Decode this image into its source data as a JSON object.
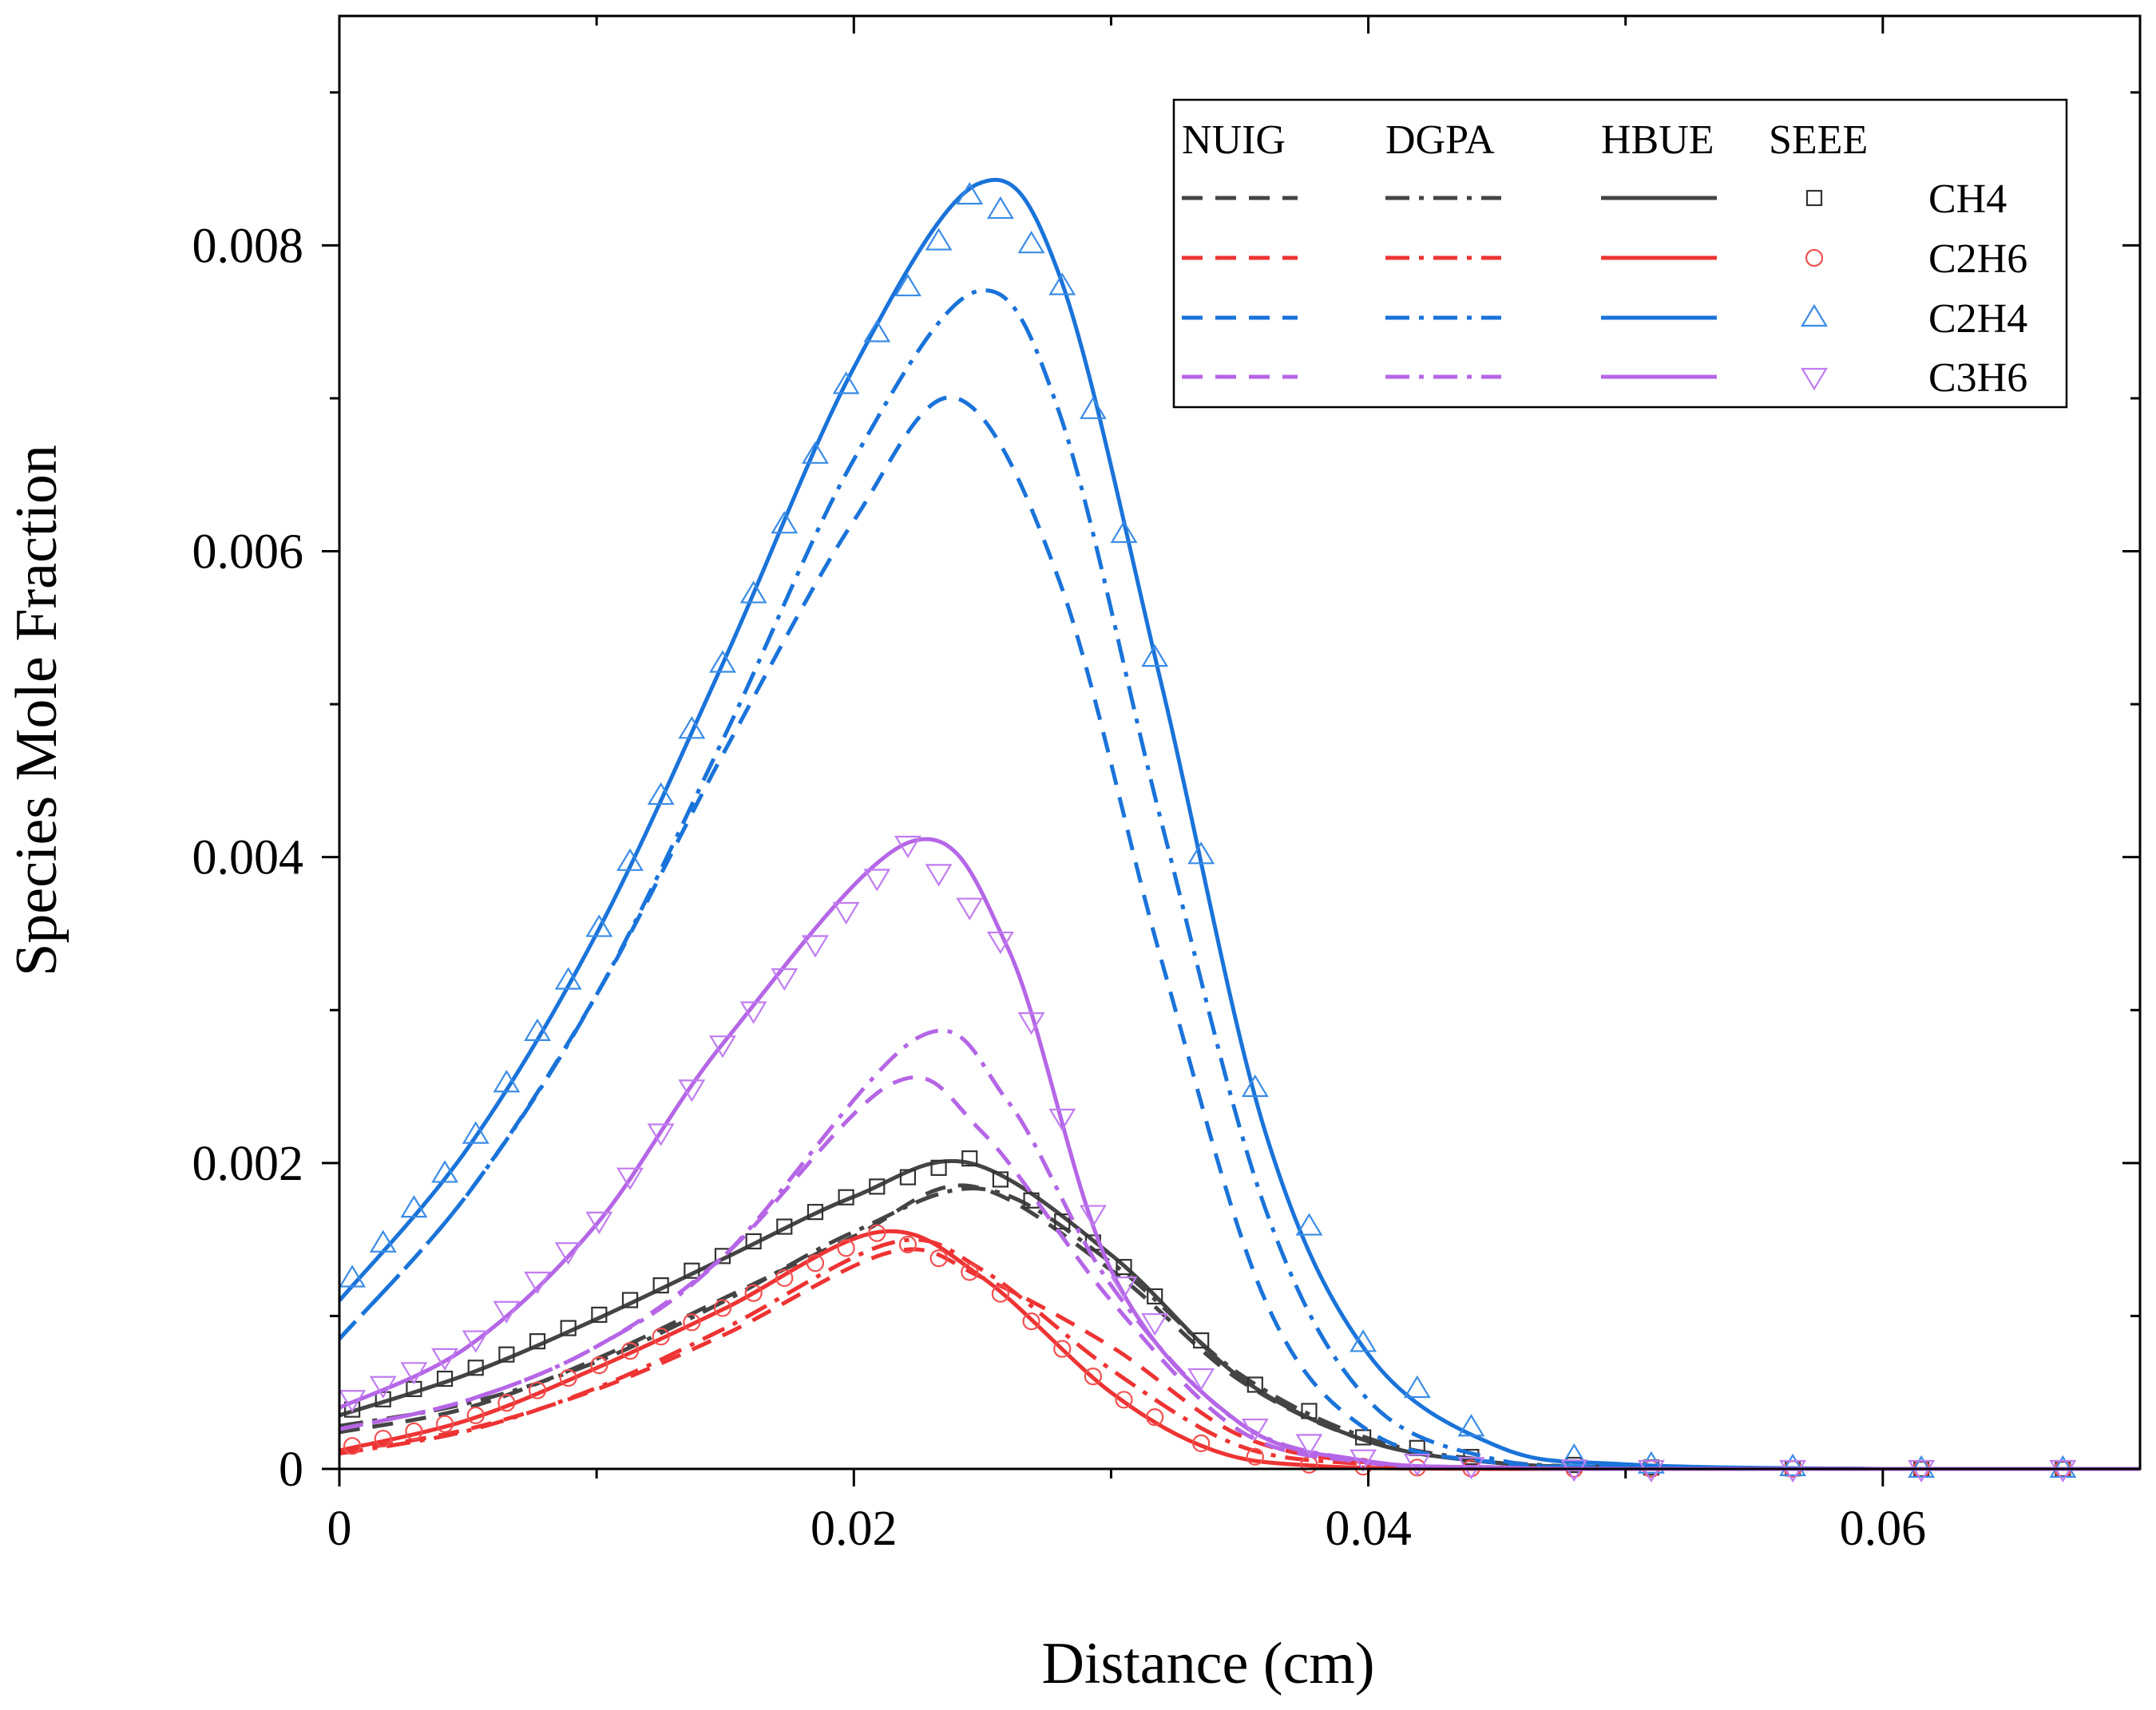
{
  "chart_data": {
    "type": "line",
    "title": "",
    "xlabel": "Distance (cm)",
    "ylabel": "Species Mole Fraction",
    "xlim": [
      0,
      0.07
    ],
    "ylim": [
      0,
      0.0095
    ],
    "x_ticks": [
      0,
      0.02,
      0.04,
      0.06
    ],
    "x_tick_labels": [
      "0",
      "0.02",
      "0.04",
      "0.06"
    ],
    "y_ticks": [
      0,
      0.002,
      0.004,
      0.006,
      0.008
    ],
    "y_tick_labels": [
      "0",
      "0.002",
      "0.004",
      "0.006",
      "0.008"
    ],
    "legend": {
      "position": "top-right",
      "model_headers": [
        "NUIG",
        "DGPA",
        "HBUE",
        "SEEE"
      ],
      "species": [
        "CH4",
        "C2H6",
        "C2H4",
        "C3H6"
      ]
    },
    "species_colors": {
      "CH4": "#444444",
      "C2H6": "#ee3333",
      "C2H4": "#1a73d9",
      "C3H6": "#b566e6"
    },
    "marker_colors": {
      "CH4": "#333333",
      "C2H6": "#f25050",
      "C2H4": "#3a8ce6",
      "C3H6": "#c07cf0"
    },
    "models": [
      {
        "name": "NUIG",
        "style": "dashed"
      },
      {
        "name": "DGPA",
        "style": "dash-dot"
      },
      {
        "name": "HBUE",
        "style": "solid"
      },
      {
        "name": "SEEE",
        "style": "markers"
      }
    ],
    "series": [
      {
        "species": "CH4",
        "model": "NUIG",
        "x": [
          0,
          0.005,
          0.01,
          0.015,
          0.02,
          0.0245,
          0.03,
          0.035,
          0.04,
          0.045,
          0.05,
          0.06,
          0.07
        ],
        "values": [
          0.00024,
          0.0004,
          0.00072,
          0.00112,
          0.00152,
          0.00185,
          0.0013,
          0.00058,
          0.00018,
          4e-05,
          1e-05,
          0.0,
          0.0
        ]
      },
      {
        "species": "CH4",
        "model": "DGPA",
        "x": [
          0,
          0.005,
          0.01,
          0.015,
          0.02,
          0.025,
          0.03,
          0.035,
          0.04,
          0.045,
          0.05,
          0.06,
          0.07
        ],
        "values": [
          0.00028,
          0.00043,
          0.0007,
          0.0011,
          0.00155,
          0.00183,
          0.00135,
          0.00062,
          0.0002,
          5e-05,
          1e-05,
          0.0,
          0.0
        ]
      },
      {
        "species": "CH4",
        "model": "HBUE",
        "x": [
          0,
          0.005,
          0.01,
          0.015,
          0.02,
          0.0245,
          0.03,
          0.035,
          0.04,
          0.045,
          0.05,
          0.06,
          0.07
        ],
        "values": [
          0.00035,
          0.00062,
          0.00098,
          0.00138,
          0.00178,
          0.002,
          0.0014,
          0.0006,
          0.00018,
          4e-05,
          1e-05,
          0.0,
          0.0
        ]
      },
      {
        "species": "CH4",
        "model": "SEEE",
        "x": [
          0,
          0.005,
          0.01,
          0.015,
          0.02,
          0.0245,
          0.03,
          0.035,
          0.04,
          0.045,
          0.05,
          0.06,
          0.07
        ],
        "values": [
          0.00036,
          0.00064,
          0.001,
          0.0014,
          0.0018,
          0.00203,
          0.0014,
          0.0006,
          0.00019,
          5e-05,
          1e-05,
          0.0,
          0.0
        ]
      },
      {
        "species": "C2H6",
        "model": "NUIG",
        "x": [
          0,
          0.005,
          0.01,
          0.015,
          0.0215,
          0.025,
          0.03,
          0.035,
          0.04,
          0.045,
          0.05,
          0.07
        ],
        "values": [
          0.00011,
          0.00026,
          0.00052,
          0.00088,
          0.00142,
          0.00125,
          0.0008,
          0.00022,
          4e-05,
          1e-05,
          0.0,
          0.0
        ]
      },
      {
        "species": "C2H6",
        "model": "DGPA",
        "x": [
          0,
          0.005,
          0.01,
          0.015,
          0.0215,
          0.025,
          0.03,
          0.035,
          0.04,
          0.045,
          0.05,
          0.07
        ],
        "values": [
          0.0001,
          0.00025,
          0.00053,
          0.00092,
          0.00148,
          0.0013,
          0.00065,
          0.00015,
          3e-05,
          0.0,
          0.0,
          0.0
        ]
      },
      {
        "species": "C2H6",
        "model": "HBUE",
        "x": [
          0,
          0.005,
          0.01,
          0.015,
          0.021,
          0.025,
          0.03,
          0.034,
          0.038,
          0.045,
          0.05,
          0.07
        ],
        "values": [
          0.00012,
          0.00032,
          0.00066,
          0.00105,
          0.00155,
          0.00125,
          0.0005,
          0.00012,
          2e-05,
          0.0,
          0.0,
          0.0
        ]
      },
      {
        "species": "C2H6",
        "model": "SEEE",
        "x": [
          0,
          0.005,
          0.01,
          0.015,
          0.021,
          0.025,
          0.03,
          0.034,
          0.038,
          0.045,
          0.05,
          0.07
        ],
        "values": [
          0.00013,
          0.00033,
          0.00067,
          0.00106,
          0.00155,
          0.00125,
          0.0005,
          0.00012,
          2e-05,
          0.0,
          0.0,
          0.0
        ]
      },
      {
        "species": "C2H4",
        "model": "NUIG",
        "x": [
          0,
          0.005,
          0.01,
          0.015,
          0.02,
          0.024,
          0.028,
          0.032,
          0.036,
          0.04,
          0.045,
          0.05,
          0.06,
          0.07
        ],
        "values": [
          0.00085,
          0.0018,
          0.0031,
          0.0047,
          0.0062,
          0.007,
          0.0058,
          0.0033,
          0.0011,
          0.00025,
          4e-05,
          1e-05,
          0.0,
          0.0
        ]
      },
      {
        "species": "C2H4",
        "model": "DGPA",
        "x": [
          0,
          0.005,
          0.01,
          0.015,
          0.02,
          0.0248,
          0.028,
          0.032,
          0.036,
          0.04,
          0.045,
          0.05,
          0.06,
          0.07
        ],
        "values": [
          0.00085,
          0.0018,
          0.0031,
          0.0048,
          0.0066,
          0.0077,
          0.0069,
          0.0042,
          0.0017,
          0.00045,
          6e-05,
          1e-05,
          0.0,
          0.0
        ]
      },
      {
        "species": "C2H4",
        "model": "HBUE",
        "x": [
          0,
          0.005,
          0.01,
          0.015,
          0.02,
          0.0248,
          0.028,
          0.032,
          0.036,
          0.04,
          0.045,
          0.05,
          0.06,
          0.07
        ],
        "values": [
          0.0011,
          0.0021,
          0.0035,
          0.0053,
          0.0072,
          0.0084,
          0.0078,
          0.0051,
          0.0022,
          0.00075,
          0.00015,
          3e-05,
          0.0,
          0.0
        ]
      },
      {
        "species": "C2H4",
        "model": "SEEE",
        "x": [
          0,
          0.005,
          0.01,
          0.015,
          0.02,
          0.0248,
          0.028,
          0.032,
          0.036,
          0.04,
          0.045,
          0.05,
          0.06,
          0.07
        ],
        "values": [
          0.00115,
          0.0021,
          0.0035,
          0.0053,
          0.0072,
          0.0084,
          0.0078,
          0.0051,
          0.0022,
          0.00075,
          0.00015,
          3e-05,
          0.0,
          0.0
        ]
      },
      {
        "species": "C3H6",
        "model": "NUIG",
        "x": [
          0,
          0.005,
          0.01,
          0.015,
          0.0215,
          0.025,
          0.03,
          0.035,
          0.04,
          0.045,
          0.05,
          0.07
        ],
        "values": [
          0.00026,
          0.00045,
          0.0008,
          0.0014,
          0.00252,
          0.0022,
          0.0011,
          0.00025,
          4e-05,
          1e-05,
          0.0,
          0.0
        ]
      },
      {
        "species": "C3H6",
        "model": "DGPA",
        "x": [
          0,
          0.005,
          0.01,
          0.015,
          0.0225,
          0.026,
          0.03,
          0.035,
          0.04,
          0.045,
          0.05,
          0.07
        ],
        "values": [
          0.00026,
          0.00045,
          0.0008,
          0.0014,
          0.00282,
          0.0024,
          0.0012,
          0.0003,
          5e-05,
          1e-05,
          0.0,
          0.0
        ]
      },
      {
        "species": "C3H6",
        "model": "HBUE",
        "x": [
          0,
          0.005,
          0.01,
          0.015,
          0.0222,
          0.026,
          0.03,
          0.035,
          0.04,
          0.045,
          0.05,
          0.07
        ],
        "values": [
          0.0004,
          0.0008,
          0.0016,
          0.0028,
          0.0041,
          0.0034,
          0.0013,
          0.0003,
          5e-05,
          1e-05,
          0.0,
          0.0
        ]
      },
      {
        "species": "C3H6",
        "model": "SEEE",
        "x": [
          0,
          0.005,
          0.01,
          0.015,
          0.0222,
          0.026,
          0.03,
          0.035,
          0.04,
          0.045,
          0.05,
          0.07
        ],
        "values": [
          0.00042,
          0.0008,
          0.0016,
          0.0028,
          0.0041,
          0.0034,
          0.0013,
          0.0003,
          6e-05,
          1e-05,
          0.0,
          0.0
        ]
      }
    ]
  }
}
